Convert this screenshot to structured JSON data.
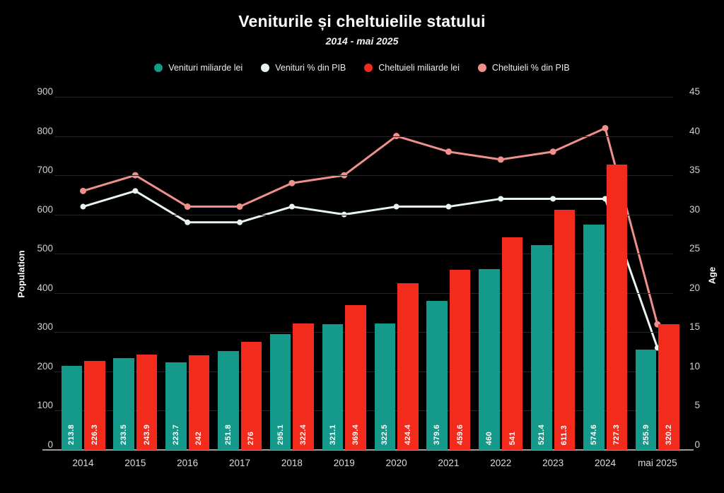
{
  "title": "Veniturile și cheltuielile statului",
  "subtitle": "2014 - mai 2025",
  "legend": {
    "items": [
      {
        "label": "Venituri miliarde lei",
        "color": "#14998a"
      },
      {
        "label": "Venituri % din PIB",
        "color": "#e7f5ec"
      },
      {
        "label": "Cheltuieli miliarde lei",
        "color": "#f32b1d"
      },
      {
        "label": "Cheltuieli % din PIB",
        "color": "#f0908c"
      }
    ]
  },
  "chart_data": {
    "type": "bar",
    "subtype": "combo bar+line, dual y-axis",
    "title": "Veniturile și cheltuielile statului",
    "subtitle": "2014 - mai 2025",
    "categories": [
      "2014",
      "2015",
      "2016",
      "2017",
      "2018",
      "2019",
      "2020",
      "2021",
      "2022",
      "2023",
      "2024",
      "mai 2025"
    ],
    "bar_series": [
      {
        "name": "Venituri miliarde lei",
        "axis": "left",
        "color": "#14998a",
        "values": [
          213.8,
          233.5,
          223.7,
          251.8,
          295.1,
          321.1,
          322.5,
          379.6,
          460,
          521.4,
          574.6,
          255.9
        ]
      },
      {
        "name": "Cheltuieli miliarde lei",
        "axis": "left",
        "color": "#f32b1d",
        "values": [
          226.3,
          243.9,
          242,
          276,
          322.4,
          369.4,
          424.4,
          459.6,
          541,
          611.3,
          727.3,
          320.2
        ]
      }
    ],
    "line_series": [
      {
        "name": "Cheltuieli % din PIB",
        "axis": "right",
        "color": "#f0908c",
        "marker_radius": 4.5,
        "values": [
          33,
          35,
          31,
          31,
          34,
          35,
          40,
          38,
          37,
          38,
          41,
          16
        ]
      },
      {
        "name": "Venituri % din PIB",
        "axis": "right",
        "color": "#e7f5ec",
        "marker_radius": 4,
        "values": [
          31,
          33,
          29,
          29,
          31,
          30,
          31,
          31,
          32,
          32,
          32,
          13
        ]
      }
    ],
    "left_axis": {
      "label": "Population",
      "min": 0,
      "max": 900,
      "step": 100
    },
    "right_axis": {
      "label": "Age",
      "min": 0,
      "max": 45,
      "step": 5
    },
    "grid": true,
    "legend_position": "top",
    "bar_value_labels": "rotated vertical at bar base"
  },
  "colors": {
    "background": "#000000",
    "grid": "#262626",
    "axis_line": "#9a9a9a",
    "tick_text": "#cfcfcf",
    "title_text": "#ffffff"
  }
}
